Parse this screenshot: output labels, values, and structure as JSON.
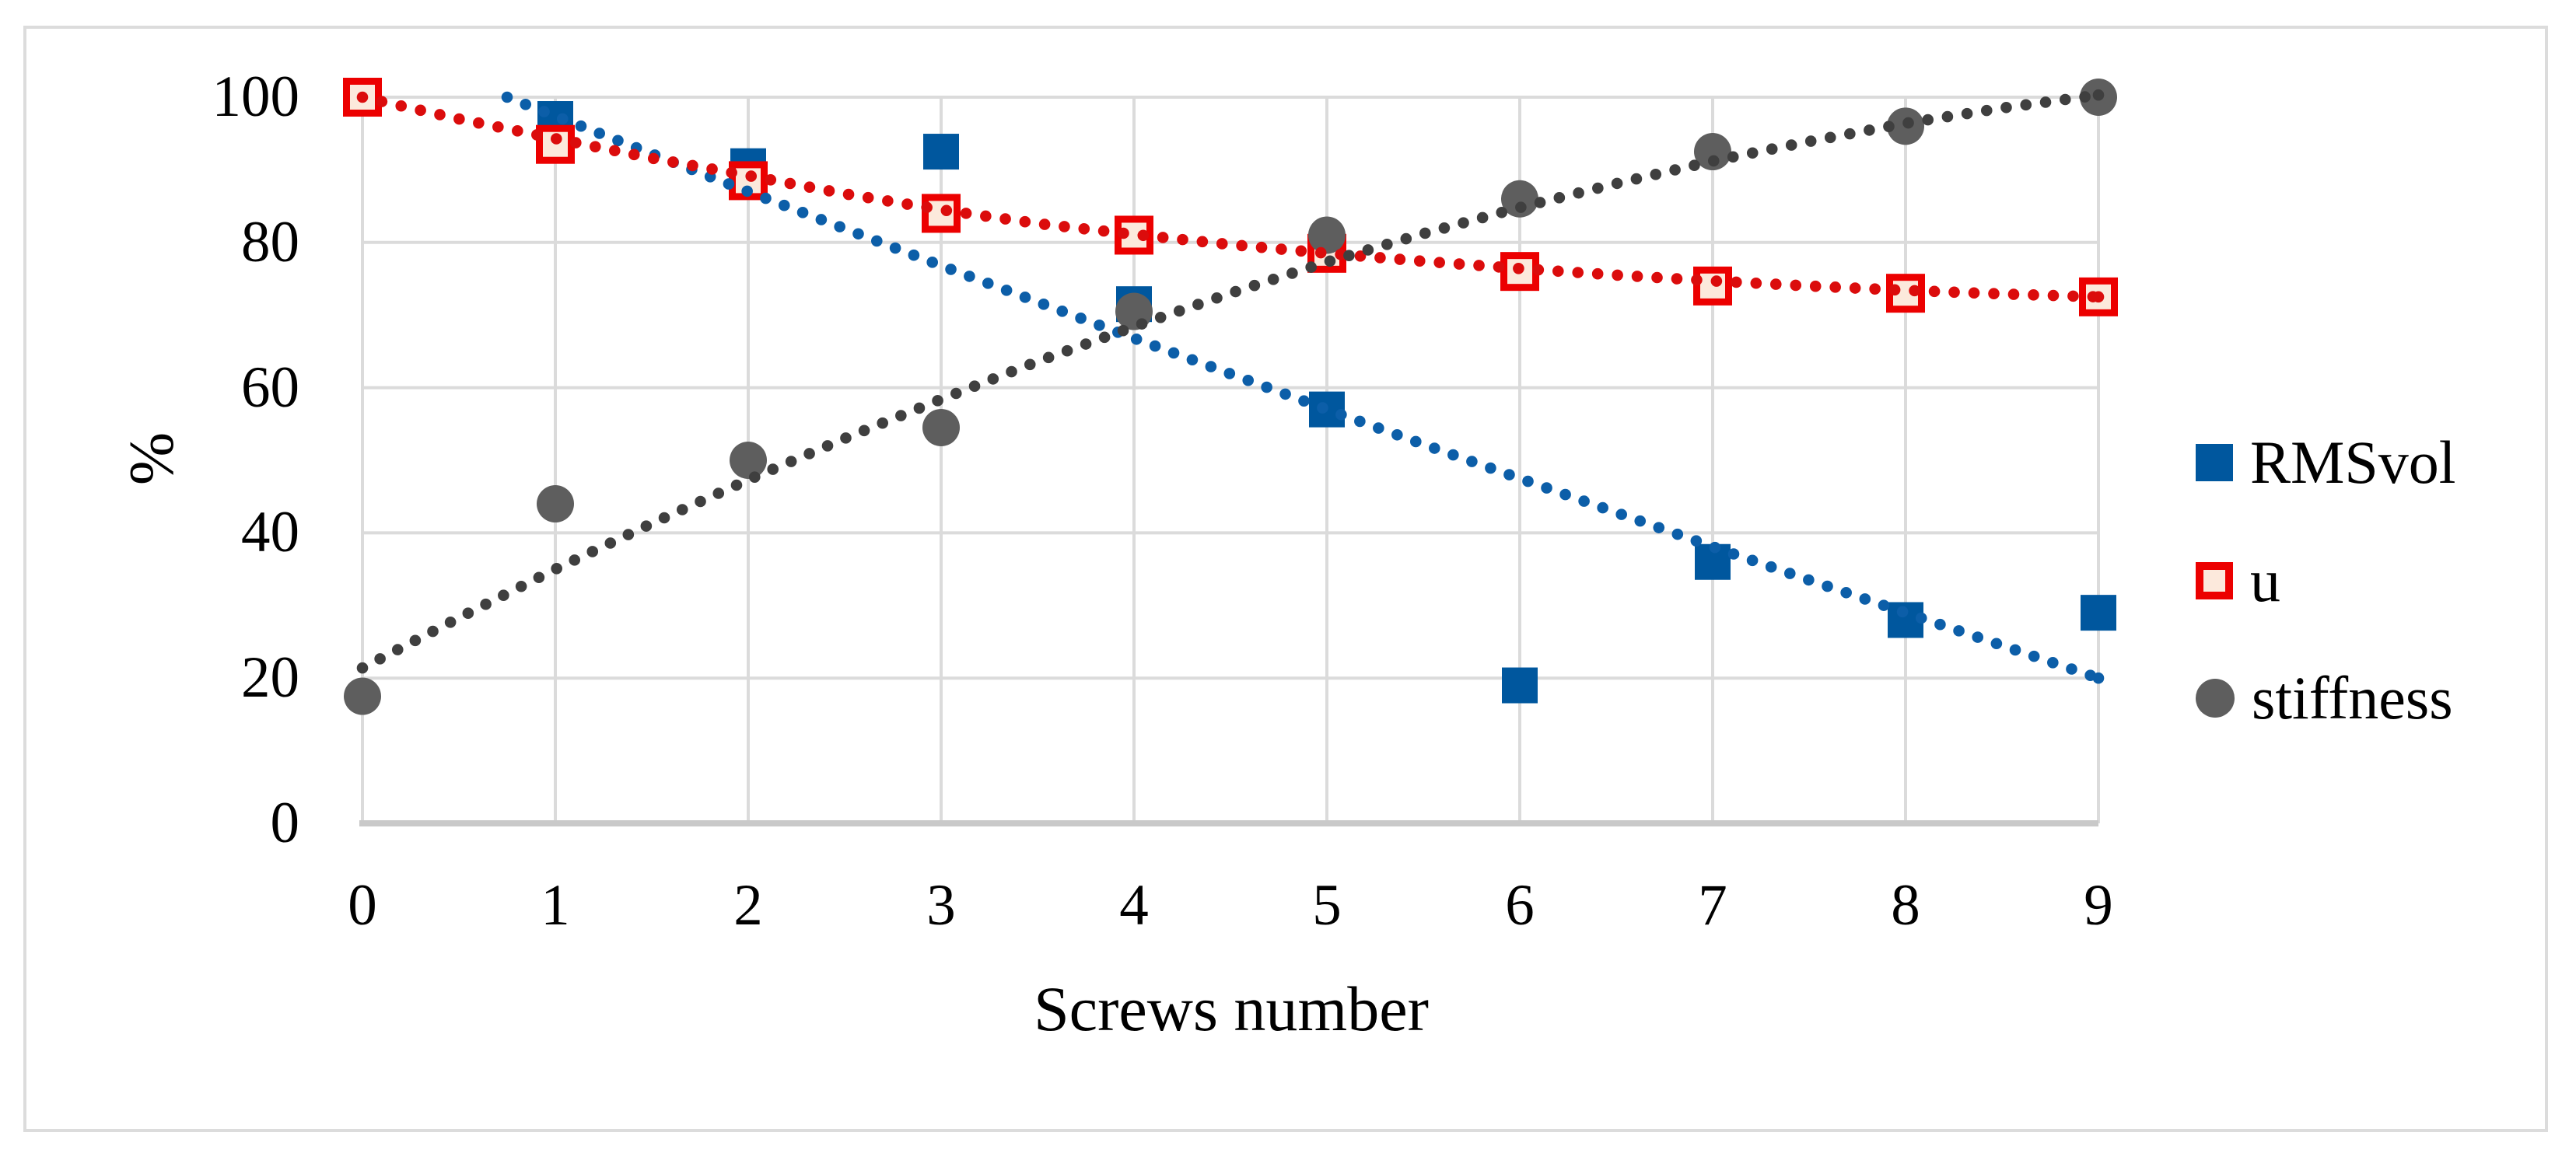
{
  "figure": {
    "background": "#FFFFFF",
    "border_color": "#DCDCDC",
    "gridline_color": "#DBDBDB",
    "axis_line_color": "#C9C9C9"
  },
  "chart_data": {
    "type": "scatter",
    "title": "",
    "xlabel": "Screws number",
    "ylabel": "%",
    "xlim": [
      0,
      9
    ],
    "ylim": [
      0,
      100
    ],
    "grid": true,
    "legend_position": "right",
    "x_ticks": [
      "0",
      "1",
      "2",
      "3",
      "4",
      "5",
      "6",
      "7",
      "8",
      "9"
    ],
    "y_ticks": [
      "100",
      "80",
      "60",
      "40",
      "20",
      "0"
    ],
    "categories": [
      0,
      1,
      2,
      3,
      4,
      5,
      6,
      7,
      8,
      9
    ],
    "series": [
      {
        "name": "RMSvol",
        "marker": "square",
        "color": "#00579E",
        "values": [
          100,
          97,
          90.5,
          92.5,
          71.5,
          57,
          19,
          36,
          28,
          29
        ],
        "trend": {
          "style": "dotted",
          "color": "#0C5EA8",
          "points": [
            [
              0.75,
              100
            ],
            [
              1,
              97.4
            ],
            [
              1.5,
              92.2
            ],
            [
              2,
              87.0
            ],
            [
              2.5,
              81.9
            ],
            [
              3,
              76.8
            ],
            [
              3.5,
              71.8
            ],
            [
              4,
              66.8
            ],
            [
              4.5,
              61.9
            ],
            [
              5,
              57.0
            ],
            [
              5.5,
              52.2
            ],
            [
              6,
              47.5
            ],
            [
              6.5,
              42.8
            ],
            [
              7,
              38.1
            ],
            [
              7.5,
              33.5
            ],
            [
              8,
              29.0
            ],
            [
              8.5,
              24.5
            ],
            [
              9,
              20.0
            ]
          ]
        }
      },
      {
        "name": "u",
        "marker": "open-square",
        "color": "#EC0000",
        "fill": "#FCE9DC",
        "values": [
          100,
          93.5,
          88.5,
          84,
          81,
          78.5,
          76,
          74,
          73,
          72.5
        ],
        "trend": {
          "style": "dotted",
          "color": "#DB0C0C",
          "points": [
            [
              0,
              100
            ],
            [
              0.5,
              97.0
            ],
            [
              1,
              94.3
            ],
            [
              1.5,
              91.6
            ],
            [
              2,
              89.2
            ],
            [
              2.5,
              86.7
            ],
            [
              3,
              84.5
            ],
            [
              3.5,
              82.6
            ],
            [
              4,
              81.1
            ],
            [
              4.5,
              79.7
            ],
            [
              5,
              78.5
            ],
            [
              5.5,
              77.4
            ],
            [
              6,
              76.4
            ],
            [
              6.5,
              75.5
            ],
            [
              7,
              74.7
            ],
            [
              7.5,
              74.0
            ],
            [
              8,
              73.4
            ],
            [
              8.5,
              72.9
            ],
            [
              9,
              72.5
            ]
          ]
        }
      },
      {
        "name": "stiffness",
        "marker": "circle",
        "color": "#5E5E5E",
        "values": [
          17.5,
          44,
          50,
          54.5,
          70.5,
          81,
          86,
          92.5,
          96,
          100
        ],
        "trend": {
          "style": "dotted",
          "color": "#3F3F3F",
          "points": [
            [
              0,
              21.4
            ],
            [
              0.5,
              28.3
            ],
            [
              1,
              35.0
            ],
            [
              1.5,
              41.3
            ],
            [
              2,
              47.3
            ],
            [
              2.5,
              53.0
            ],
            [
              3,
              58.4
            ],
            [
              3.5,
              63.6
            ],
            [
              4,
              68.4
            ],
            [
              4.5,
              73.0
            ],
            [
              5,
              77.3
            ],
            [
              5.5,
              81.2
            ],
            [
              6,
              84.8
            ],
            [
              6.5,
              88.1
            ],
            [
              7,
              91.2
            ],
            [
              7.5,
              93.9
            ],
            [
              8,
              96.4
            ],
            [
              8.5,
              98.5
            ],
            [
              9,
              100.3
            ]
          ]
        }
      }
    ]
  }
}
